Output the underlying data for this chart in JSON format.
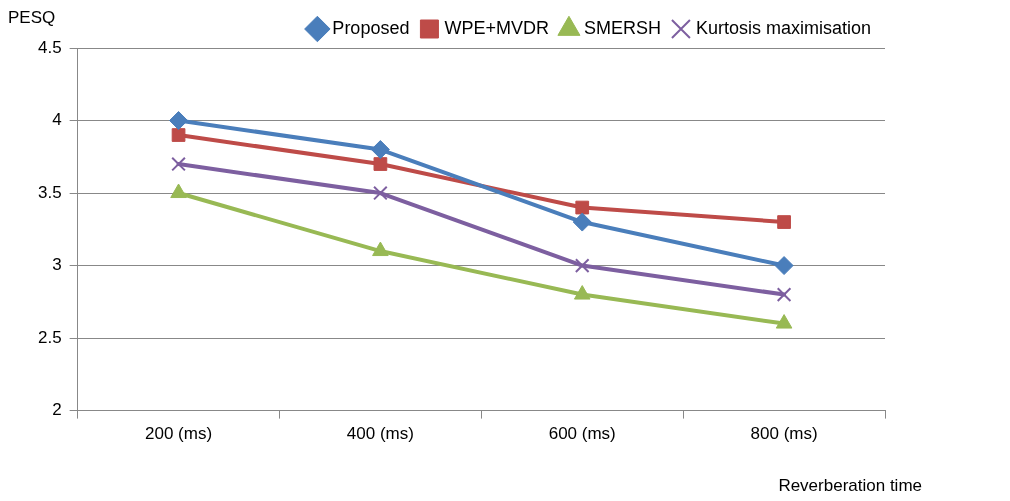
{
  "chart_data": {
    "type": "line",
    "ylabel": "PESQ",
    "xlabel": "Reverberation time",
    "categories": [
      "200 (ms)",
      "400 (ms)",
      "600 (ms)",
      "800 (ms)"
    ],
    "series": [
      {
        "name": "Proposed",
        "color": "#4a7ebb",
        "marker": "diamond",
        "values": [
          4.0,
          3.8,
          3.3,
          3.0
        ]
      },
      {
        "name": "WPE+MVDR",
        "color": "#be4b48",
        "marker": "square",
        "values": [
          3.9,
          3.7,
          3.4,
          3.3
        ]
      },
      {
        "name": "SMERSH",
        "color": "#98b954",
        "marker": "triangle",
        "values": [
          3.5,
          3.1,
          2.8,
          2.6
        ]
      },
      {
        "name": "Kurtosis maximisation",
        "color": "#7d5fa0",
        "marker": "cross",
        "values": [
          3.7,
          3.5,
          3.0,
          2.8
        ]
      }
    ],
    "ylim": [
      2,
      4.5
    ],
    "yticks": [
      2,
      2.5,
      3,
      3.5,
      4,
      4.5
    ],
    "grid": "y",
    "legend": "top right",
    "line_style": "solid"
  }
}
